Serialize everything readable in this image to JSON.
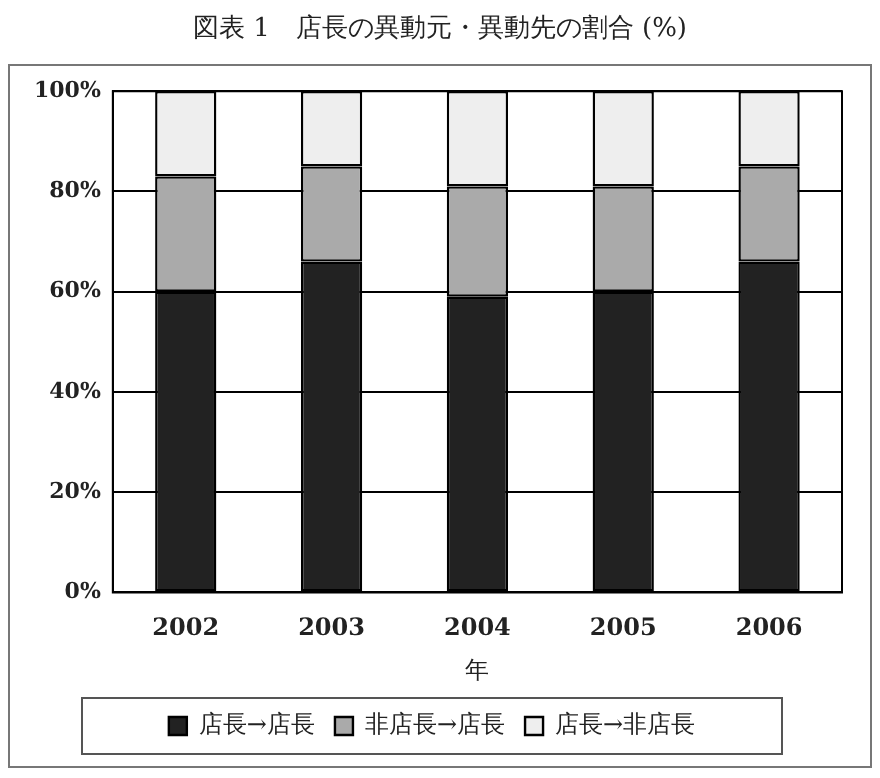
{
  "chart_data": {
    "type": "bar",
    "title": "図表 1　店長の異動元・異動先の割合 (%)",
    "xlabel": "年",
    "categories": [
      "2002",
      "2003",
      "2004",
      "2005",
      "2006"
    ],
    "stacked": true,
    "series": [
      {
        "name": "店長→店長",
        "color": "#222222",
        "values": [
          60,
          66,
          59,
          60,
          66
        ]
      },
      {
        "name": "非店長→店長",
        "color": "#aaaaaa",
        "values": [
          23,
          19,
          22,
          21,
          19
        ]
      },
      {
        "name": "店長→非店長",
        "color": "#eeeeee",
        "values": [
          17,
          15,
          19,
          19,
          15
        ]
      }
    ],
    "ylim": [
      0,
      100
    ],
    "yticks": [
      {
        "value": 0,
        "label": "0%"
      },
      {
        "value": 20,
        "label": "20%"
      },
      {
        "value": 40,
        "label": "40%"
      },
      {
        "value": 60,
        "label": "60%"
      },
      {
        "value": 80,
        "label": "80%"
      },
      {
        "value": 100,
        "label": "100%"
      }
    ],
    "grid": "y",
    "legend": "bottom"
  }
}
